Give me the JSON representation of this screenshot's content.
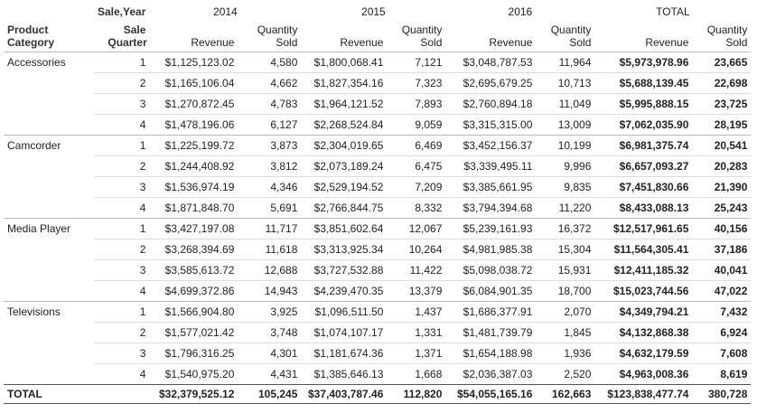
{
  "header": {
    "year_label": "Sale,Year",
    "category_label": "Product Category",
    "quarter_label": "Sale Quarter",
    "years": [
      "2014",
      "2015",
      "2016",
      "TOTAL"
    ],
    "measures": [
      "Revenue",
      "Quantity Sold"
    ]
  },
  "groups": [
    {
      "category": "Accessories",
      "rows": [
        [
          "1",
          "$1,125,123.02",
          "4,580",
          "$1,800,068.41",
          "7,121",
          "$3,048,787.53",
          "11,964",
          "$5,973,978.96",
          "23,665"
        ],
        [
          "2",
          "$1,165,106.04",
          "4,662",
          "$1,827,354.16",
          "7,323",
          "$2,695,679.25",
          "10,713",
          "$5,688,139.45",
          "22,698"
        ],
        [
          "3",
          "$1,270,872.45",
          "4,783",
          "$1,964,121.52",
          "7,893",
          "$2,760,894.18",
          "11,049",
          "$5,995,888.15",
          "23,725"
        ],
        [
          "4",
          "$1,478,196.06",
          "6,127",
          "$2,268,524.84",
          "9,059",
          "$3,315,315.00",
          "13,009",
          "$7,062,035.90",
          "28,195"
        ]
      ]
    },
    {
      "category": "Camcorder",
      "rows": [
        [
          "1",
          "$1,225,199.72",
          "3,873",
          "$2,304,019.65",
          "6,469",
          "$3,452,156.37",
          "10,199",
          "$6,981,375.74",
          "20,541"
        ],
        [
          "2",
          "$1,244,408.92",
          "3,812",
          "$2,073,189.24",
          "6,475",
          "$3,339,495.11",
          "9,996",
          "$6,657,093.27",
          "20,283"
        ],
        [
          "3",
          "$1,536,974.19",
          "4,346",
          "$2,529,194.52",
          "7,209",
          "$3,385,661.95",
          "9,835",
          "$7,451,830.66",
          "21,390"
        ],
        [
          "4",
          "$1,871,848.70",
          "5,691",
          "$2,766,844.75",
          "8,332",
          "$3,794,394.68",
          "11,220",
          "$8,433,088.13",
          "25,243"
        ]
      ]
    },
    {
      "category": "Media Player",
      "rows": [
        [
          "1",
          "$3,427,197.08",
          "11,717",
          "$3,851,602.64",
          "12,067",
          "$5,239,161.93",
          "16,372",
          "$12,517,961.65",
          "40,156"
        ],
        [
          "2",
          "$3,268,394.69",
          "11,618",
          "$3,313,925.34",
          "10,264",
          "$4,981,985.38",
          "15,304",
          "$11,564,305.41",
          "37,186"
        ],
        [
          "3",
          "$3,585,613.72",
          "12,688",
          "$3,727,532.88",
          "11,422",
          "$5,098,038.72",
          "15,931",
          "$12,411,185.32",
          "40,041"
        ],
        [
          "4",
          "$4,699,372.86",
          "14,943",
          "$4,239,470.35",
          "13,379",
          "$6,084,901.35",
          "18,700",
          "$15,023,744.56",
          "47,022"
        ]
      ]
    },
    {
      "category": "Televisions",
      "rows": [
        [
          "1",
          "$1,566,904.80",
          "3,925",
          "$1,096,511.50",
          "1,437",
          "$1,686,377.91",
          "2,070",
          "$4,349,794.21",
          "7,432"
        ],
        [
          "2",
          "$1,577,021.42",
          "3,748",
          "$1,074,107.17",
          "1,331",
          "$1,481,739.79",
          "1,845",
          "$4,132,868.38",
          "6,924"
        ],
        [
          "3",
          "$1,796,316.25",
          "4,301",
          "$1,181,674.36",
          "1,371",
          "$1,654,188.98",
          "1,936",
          "$4,632,179.59",
          "7,608"
        ],
        [
          "4",
          "$1,540,975.20",
          "4,431",
          "$1,385,646.13",
          "1,668",
          "$2,036,387.03",
          "2,520",
          "$4,963,008.36",
          "8,619"
        ]
      ]
    }
  ],
  "total": {
    "label": "TOTAL",
    "values": [
      "$32,379,525.12",
      "105,245",
      "$37,403,787.46",
      "112,820",
      "$54,055,165.16",
      "162,663",
      "$123,838,477.74",
      "380,728"
    ]
  }
}
